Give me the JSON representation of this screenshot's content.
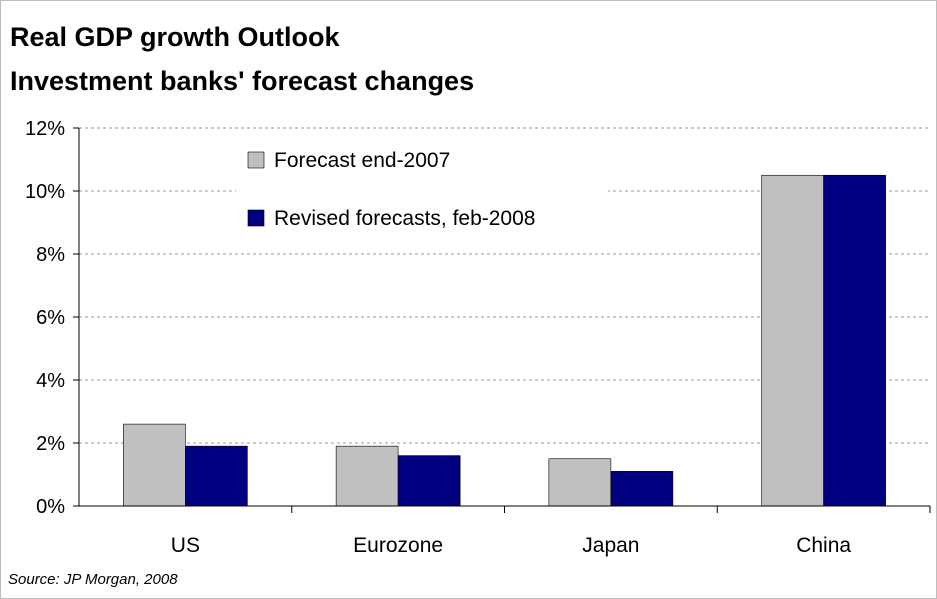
{
  "title": "Real GDP growth Outlook",
  "subtitle": "Investment banks' forecast changes",
  "source": "Source: JP Morgan, 2008",
  "chart_data": {
    "type": "bar",
    "categories": [
      "US",
      "Eurozone",
      "Japan",
      "China"
    ],
    "series": [
      {
        "name": "Forecast end-2007",
        "values": [
          2.6,
          1.9,
          1.5,
          10.5
        ],
        "color": "#c0c0c0"
      },
      {
        "name": "Revised forecasts, feb-2008",
        "values": [
          1.9,
          1.6,
          1.1,
          10.5
        ],
        "color": "#000080"
      }
    ],
    "yticks": [
      "0%",
      "2%",
      "4%",
      "6%",
      "8%",
      "10%",
      "12%"
    ],
    "ylim": [
      0,
      12
    ],
    "grid": true,
    "legend_position": "top-left"
  }
}
